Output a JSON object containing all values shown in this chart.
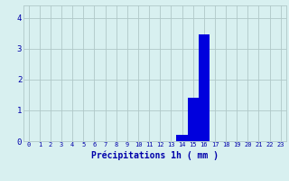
{
  "hours": [
    0,
    1,
    2,
    3,
    4,
    5,
    6,
    7,
    8,
    9,
    10,
    11,
    12,
    13,
    14,
    15,
    16,
    17,
    18,
    19,
    20,
    21,
    22,
    23
  ],
  "values": [
    0,
    0,
    0,
    0,
    0,
    0,
    0,
    0,
    0,
    0,
    0,
    0,
    0,
    0,
    0.2,
    1.4,
    3.45,
    0,
    0,
    0,
    0,
    0,
    0,
    0
  ],
  "bar_color": "#0000dd",
  "bg_color": "#d8f0f0",
  "grid_color": "#b0c8c8",
  "xlabel": "Précipitations 1h ( mm )",
  "xlabel_color": "#0000aa",
  "tick_color": "#0000aa",
  "ylim": [
    0,
    4.4
  ],
  "yticks": [
    0,
    1,
    2,
    3,
    4
  ],
  "xlim": [
    -0.5,
    23.5
  ]
}
